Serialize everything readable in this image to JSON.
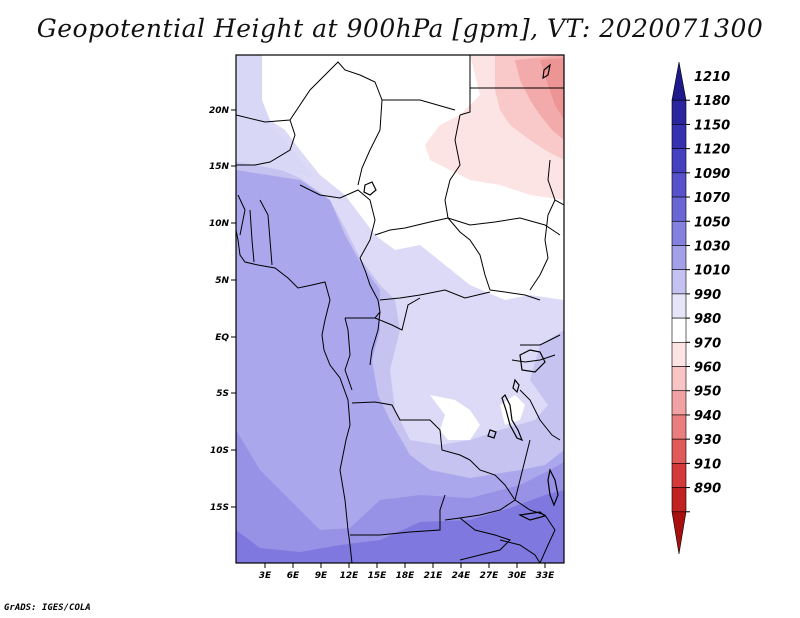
{
  "title": "Geopotential Height at 900hPa [gpm], VT: 2020071300",
  "credit": "GrADS: IGES/COLA",
  "map": {
    "lat_labels": [
      "20N",
      "15N",
      "10N",
      "5N",
      "EQ",
      "5S",
      "10S",
      "15S"
    ],
    "lon_labels": [
      "3E",
      "6E",
      "9E",
      "12E",
      "15E",
      "18E",
      "21E",
      "24E",
      "27E",
      "30E",
      "33E"
    ]
  },
  "colorbar": {
    "labels": [
      "1210",
      "1180",
      "1150",
      "1120",
      "1090",
      "1070",
      "1050",
      "1030",
      "1010",
      "990",
      "980",
      "970",
      "960",
      "950",
      "940",
      "930",
      "910",
      "890"
    ],
    "colors": [
      "#1f1a8c",
      "#2a259e",
      "#3631b0",
      "#4540c0",
      "#5752cc",
      "#6b66d6",
      "#8480df",
      "#a3a0e8",
      "#c4c2f0",
      "#e6e5f8",
      "#ffffff",
      "#fde3e3",
      "#f9c4c4",
      "#f2a2a2",
      "#ea7e7e",
      "#e05a5a",
      "#d43a3a",
      "#c02222",
      "#a81010"
    ]
  }
}
